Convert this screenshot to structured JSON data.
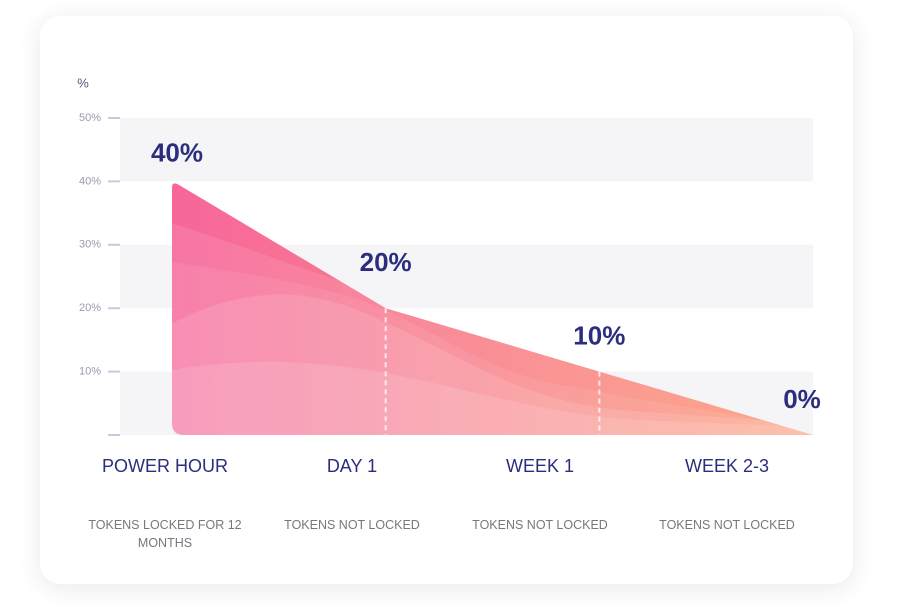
{
  "chart_data": {
    "type": "area",
    "y_label": "%",
    "categories": [
      "POWER HOUR",
      "DAY 1",
      "WEEK 1",
      "WEEK 2-3"
    ],
    "descriptions": [
      "TOKENS LOCKED FOR 12 MONTHS",
      "TOKENS NOT LOCKED",
      "TOKENS NOT LOCKED",
      "TOKENS NOT LOCKED"
    ],
    "values": [
      40,
      20,
      10,
      0
    ],
    "value_labels": [
      "40%",
      "20%",
      "10%",
      "0%"
    ],
    "colors": [
      "#f7669b",
      "#fca07c"
    ],
    "ylim": [
      0,
      50
    ],
    "yticks": [
      {
        "value": 10,
        "label": "10%"
      },
      {
        "value": 20,
        "label": "20%"
      },
      {
        "value": 30,
        "label": "30%"
      },
      {
        "value": 40,
        "label": "40%"
      },
      {
        "value": 50,
        "label": "50%"
      }
    ],
    "grid": true
  }
}
